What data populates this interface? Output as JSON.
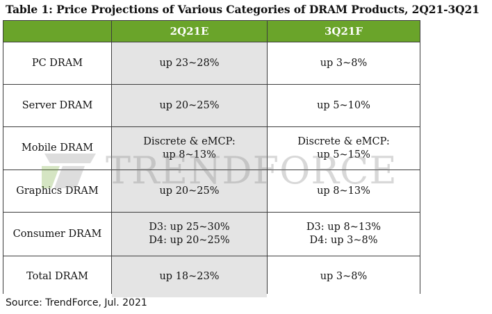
{
  "title": "Table 1: Price Projections of Various Categories of DRAM Products, 2Q21-3Q21",
  "table": {
    "headers": [
      "",
      "2Q21E",
      "3Q21F"
    ],
    "rows": [
      {
        "category": "PC DRAM",
        "q2": [
          "up 23~28%"
        ],
        "q3": [
          "up 3~8%"
        ]
      },
      {
        "category": "Server DRAM",
        "q2": [
          "up 20~25%"
        ],
        "q3": [
          "up 5~10%"
        ]
      },
      {
        "category": "Mobile DRAM",
        "q2": [
          "Discrete & eMCP:",
          "up 8~13%"
        ],
        "q3": [
          "Discrete & eMCP:",
          "up 5~15%"
        ]
      },
      {
        "category": "Graphics DRAM",
        "q2": [
          "up 20~25%"
        ],
        "q3": [
          "up 8~13%"
        ]
      },
      {
        "category": "Consumer DRAM",
        "q2": [
          "D3: up 25~30%",
          "D4: up 20~25%"
        ],
        "q3": [
          "D3: up 8~13%",
          "D4: up 3~8%"
        ]
      },
      {
        "category": "Total DRAM",
        "q2": [
          "up 18~23%"
        ],
        "q3": [
          "up 3~8%"
        ]
      }
    ]
  },
  "watermark": "TRENDFORCE",
  "source": "Source: TrendForce, Jul. 2021",
  "colors": {
    "header_bg": "#6aa42a",
    "shaded_col": "#e4e4e4"
  }
}
